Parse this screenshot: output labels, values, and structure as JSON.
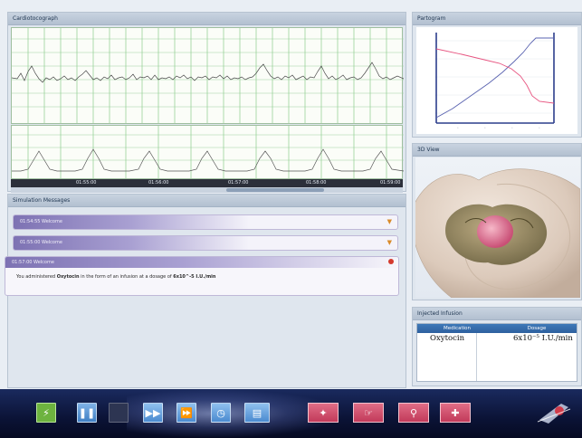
{
  "panels": {
    "ctg": {
      "title": "Cardiotocograph"
    },
    "messages": {
      "title": "Simulation Messages"
    },
    "partogram": {
      "title": "Partogram"
    },
    "view3d": {
      "title": "3D View"
    },
    "infusion": {
      "title": "Injected Infusion"
    }
  },
  "ctg": {
    "time_ticks": [
      "01:55:00",
      "01:56:00",
      "01:57:00",
      "01:58:00",
      "01:59:00"
    ]
  },
  "messages": {
    "items": [
      {
        "title": "01:54:55 Welcome"
      },
      {
        "title": "01:55:00 Welcome"
      }
    ],
    "open": {
      "title": "01:57:00 Welcome",
      "text_prefix": "You administered",
      "drug": "Oxytocin",
      "text_mid": "in the form of an infusion at a dosage of",
      "dose": "6x10^-5 I.U./min"
    }
  },
  "infusion": {
    "columns": [
      "Medication",
      "Dosage"
    ],
    "rows": [
      {
        "medication": "Oxytocin",
        "dosage": "6x10⁻⁵ I.U./min"
      }
    ]
  },
  "toolbar": {
    "icons": [
      "lightning-icon",
      "pause-icon",
      "stop-icon",
      "play-icon",
      "fast-forward-icon",
      "clock-icon",
      "printer-icon",
      "forceps-icon",
      "hand-icon",
      "stethoscope-icon",
      "first-aid-icon",
      "logo"
    ],
    "colors": {
      "green": "#6db33f",
      "blue": "#4f8fd0",
      "red": "#d64c6d"
    }
  },
  "colors": {
    "panel_bg": "#dfe6ee",
    "ctg_grid": "#7ec27e",
    "partogram_pink": "#e75480",
    "partogram_blue": "#3a4c9a"
  }
}
